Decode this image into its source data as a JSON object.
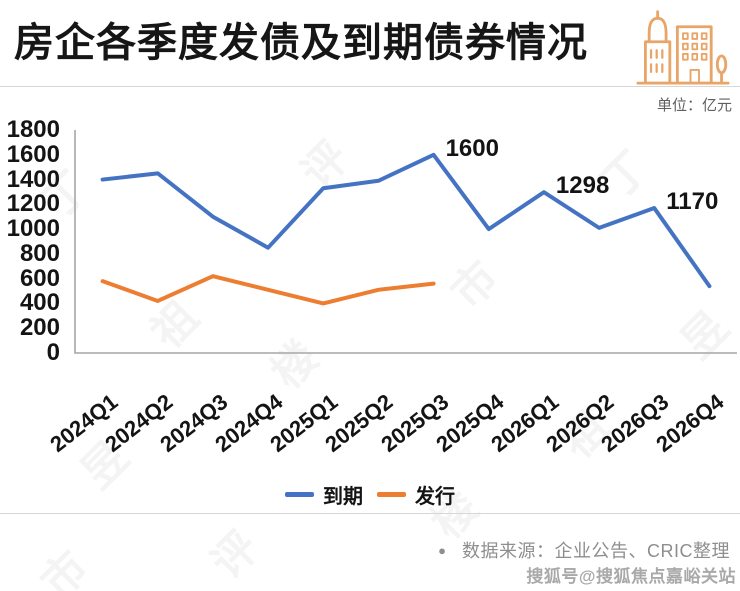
{
  "title": "房企各季度发债及到期债券情况",
  "unit_label": "单位：亿元",
  "background_watermark": "丁祖昱评楼市",
  "footer_watermark": "搜狐号@搜狐焦点嘉峪关站",
  "source": {
    "bullet": "●",
    "text": "数据来源：企业公告、CRIC整理"
  },
  "icon": {
    "name": "buildings-icon",
    "color": "#E9A568"
  },
  "legend": {
    "position": "bottom",
    "items": [
      {
        "label": "到期",
        "color": "#4573C4"
      },
      {
        "label": "发行",
        "color": "#ED7D31"
      }
    ]
  },
  "chart_data": {
    "type": "line",
    "title": "房企各季度发债及到期债券情况",
    "xlabel": "",
    "ylabel": "亿元",
    "ylim": [
      0,
      1800
    ],
    "grid": false,
    "legend_position": "bottom",
    "yticks": [
      1800,
      1600,
      1400,
      1200,
      1000,
      800,
      600,
      400,
      200,
      0
    ],
    "categories": [
      "2024Q1",
      "2024Q2",
      "2024Q3",
      "2024Q4",
      "2025Q1",
      "2025Q2",
      "2025Q3",
      "2025Q4",
      "2026Q1",
      "2026Q2",
      "2026Q3",
      "2026Q4"
    ],
    "series": [
      {
        "name": "到期",
        "color": "#4573C4",
        "values": [
          1400,
          1450,
          1100,
          850,
          1330,
          1390,
          1600,
          1000,
          1298,
          1010,
          1170,
          540
        ]
      },
      {
        "name": "发行",
        "color": "#ED7D31",
        "values": [
          580,
          420,
          620,
          510,
          400,
          510,
          560,
          null,
          null,
          null,
          null,
          null
        ]
      }
    ],
    "annotations": [
      {
        "series": 0,
        "index": 6,
        "text": "1600"
      },
      {
        "series": 0,
        "index": 8,
        "text": "1298"
      },
      {
        "series": 0,
        "index": 10,
        "text": "1170"
      }
    ]
  }
}
